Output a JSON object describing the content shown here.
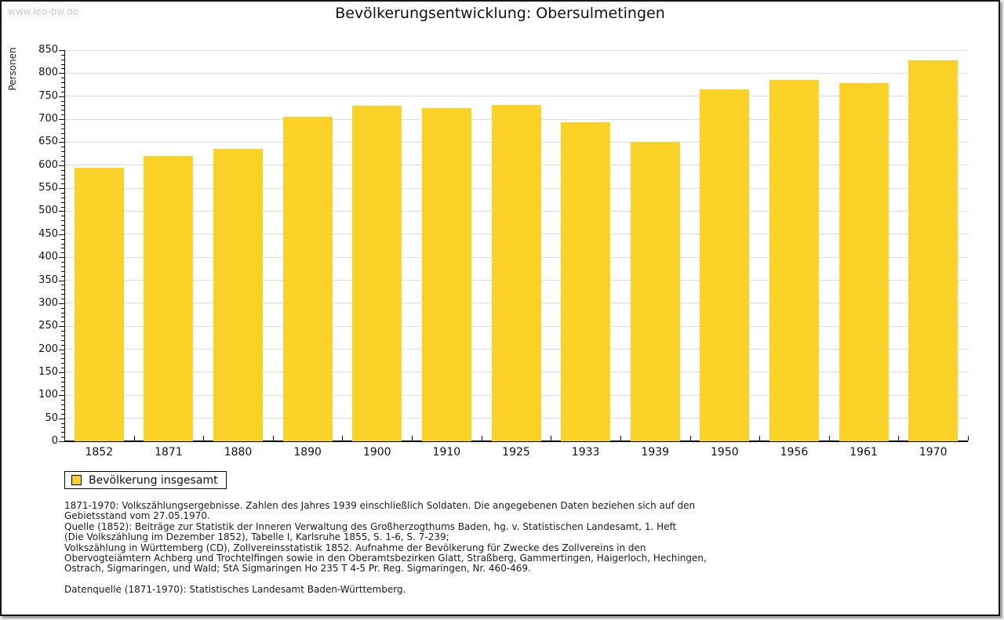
{
  "watermark": "www.leo-bw.de",
  "title": "Bevölkerungsentwicklung: Obersulmetingen",
  "chart_data": {
    "type": "bar",
    "title": "Bevölkerungsentwicklung: Obersulmetingen",
    "xlabel": "",
    "ylabel": "Personen",
    "categories": [
      "1852",
      "1871",
      "1880",
      "1890",
      "1900",
      "1910",
      "1925",
      "1933",
      "1939",
      "1950",
      "1956",
      "1961",
      "1970"
    ],
    "values": [
      595,
      620,
      636,
      706,
      729,
      724,
      731,
      693,
      650,
      765,
      785,
      779,
      828
    ],
    "series_name": "Bevölkerung insgesamt",
    "ylim": [
      0,
      850
    ],
    "ytick_major_step": 50,
    "ytick_minor_step": 10,
    "grid": true,
    "legend_position": "bottom-left",
    "bar_color": "#fcd228",
    "gridline_color": "#dcdcdc"
  },
  "legend": {
    "label": "Bevölkerung insgesamt"
  },
  "footer": {
    "lines": [
      "1871-1970: Volkszählungsergebnisse. Zahlen des Jahres 1939 einschließlich Soldaten. Die angegebenen Daten beziehen sich auf den",
      "Gebietsstand vom 27.05.1970.",
      "Quelle (1852): Beiträge zur Statistik der Inneren Verwaltung des Großherzogthums Baden, hg. v. Statistischen Landesamt, 1. Heft",
      "(Die Volkszählung im Dezember 1852), Tabelle I, Karlsruhe 1855, S. 1-6, S. 7-239;",
      "Volkszählung in Württemberg (CD), Zollvereinsstatistik 1852. Aufnahme der Bevölkerung für Zwecke des Zollvereins in den",
      "Obervogteiämtern Achberg und Trochtelfingen sowie in den Oberamtsbezirken Glatt, Straßberg, Gammertingen, Haigerloch, Hechingen,",
      "Ostrach, Sigmaringen, und Wald; StA Sigmaringen Ho 235 T 4-5 Pr. Reg. Sigmaringen, Nr. 460-469."
    ],
    "datasource": "Datenquelle (1871-1970): Statistisches Landesamt Baden-Württemberg."
  }
}
